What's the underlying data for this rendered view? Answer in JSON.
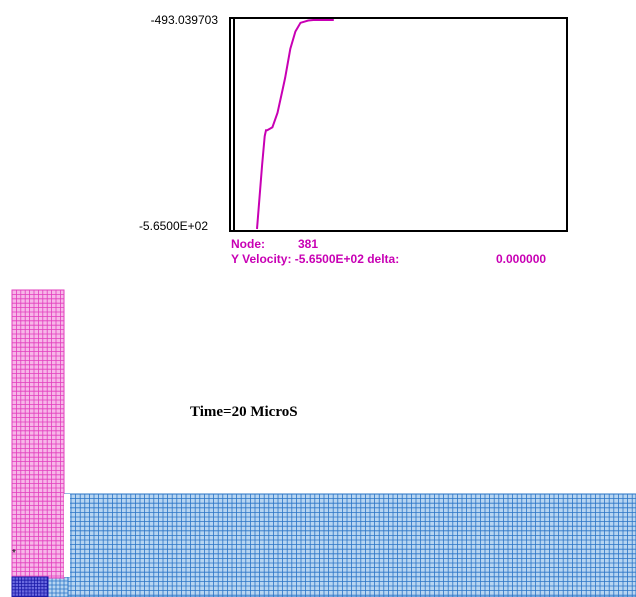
{
  "chart_data": {
    "type": "line",
    "ylim": [
      -565.0,
      -493.039703
    ],
    "ytick_labels": [
      "-493.039703",
      "-5.6500E+02"
    ],
    "series": [
      {
        "color": "#c800b4",
        "x": [
          0,
          2,
          3,
          3.5,
          4,
          6,
          8,
          10,
          11,
          13,
          15,
          17,
          19,
          20,
          22,
          25,
          30
        ],
        "y": [
          -565,
          -543,
          -533,
          -531,
          -531,
          -530,
          -525,
          -517,
          -513,
          -503,
          -497,
          -494,
          -493.5,
          -493.2,
          -493.04,
          -493.04,
          -493.04
        ]
      }
    ]
  },
  "readout": {
    "node_label": "Node:",
    "node_value": "381",
    "velocity_label": "Y Velocity: -5.6500E+02 delta:",
    "delta_value": "0.000000"
  },
  "time_label": "Time=20 MicroS",
  "marker_glyph": "*",
  "colors": {
    "plate_fill": "#f7b6e8",
    "plate_grid": "#e23dbd",
    "base_fill": "#b7d5f1",
    "base_grid": "#2a74c6",
    "impact_fill": "#1a1aa8",
    "curve": "#c800b4"
  }
}
